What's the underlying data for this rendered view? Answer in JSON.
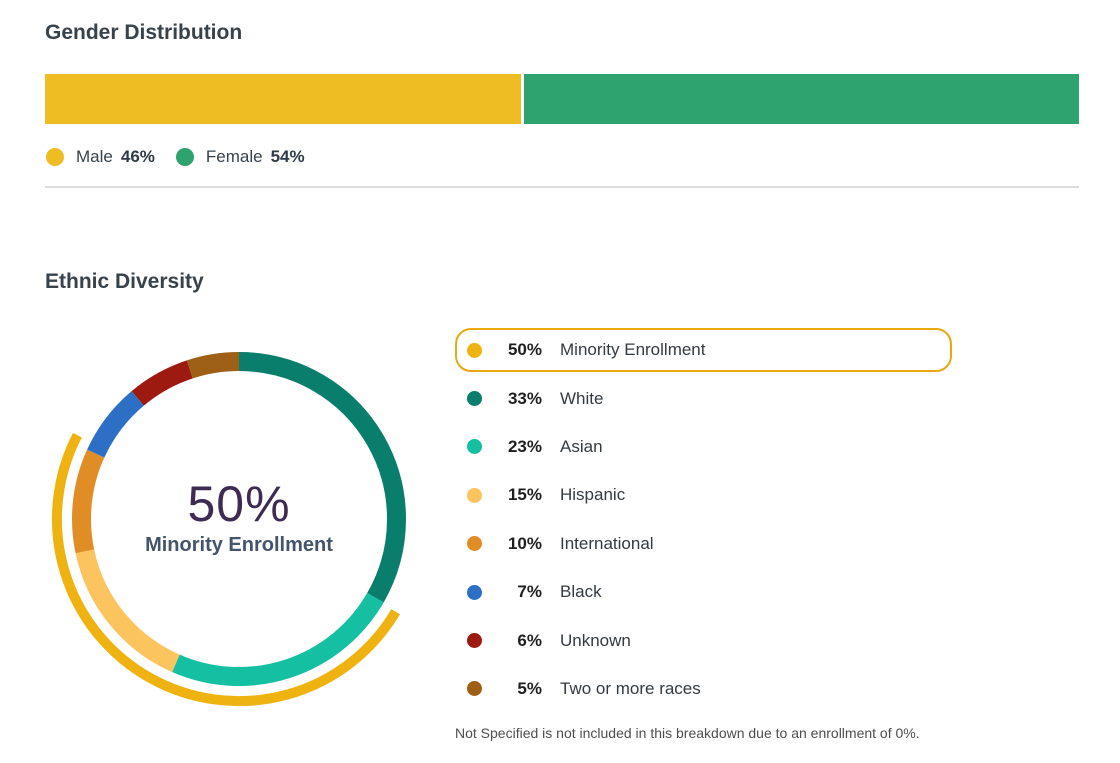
{
  "page": {
    "background": "#ffffff"
  },
  "gender_section": {
    "title": "Gender Distribution",
    "legend": [
      {
        "label": "Male",
        "pct_text": "46%",
        "color": "#eebd23"
      },
      {
        "label": "Female",
        "pct_text": "54%",
        "color": "#2ea26f"
      }
    ]
  },
  "ethnic_section": {
    "title": "Ethnic Diversity",
    "center_value": "50%",
    "center_label": "Minority Enrollment",
    "highlight_border_color": "#e7a90e",
    "legend": [
      {
        "pct_text": "50%",
        "label": "Minority Enrollment",
        "color": "#efb311",
        "highlighted": true
      },
      {
        "pct_text": "33%",
        "label": "White",
        "color": "#0a7e6d",
        "highlighted": false
      },
      {
        "pct_text": "23%",
        "label": "Asian",
        "color": "#14bfa2",
        "highlighted": false
      },
      {
        "pct_text": "15%",
        "label": "Hispanic",
        "color": "#fbc45e",
        "highlighted": false
      },
      {
        "pct_text": "10%",
        "label": "International",
        "color": "#e08d26",
        "highlighted": false
      },
      {
        "pct_text": "7%",
        "label": "Black",
        "color": "#2d6fc4",
        "highlighted": false
      },
      {
        "pct_text": "6%",
        "label": "Unknown",
        "color": "#9c1a10",
        "highlighted": false
      },
      {
        "pct_text": "5%",
        "label": "Two or more races",
        "color": "#9d6016",
        "highlighted": false
      }
    ],
    "footnote": "Not Specified is not included in this breakdown due to an enrollment of 0%."
  },
  "chart_data": [
    {
      "type": "bar",
      "variant": "stacked-horizontal",
      "title": "Gender Distribution",
      "unit": "%",
      "series": [
        {
          "name": "Male",
          "value": 46,
          "color": "#eebd23"
        },
        {
          "name": "Female",
          "value": 54,
          "color": "#2ea26f"
        }
      ]
    },
    {
      "type": "pie",
      "variant": "donut",
      "title": "Ethnic Diversity",
      "unit": "%",
      "center_value": "50%",
      "center_label": "Minority Enrollment",
      "segments": [
        {
          "label": "White",
          "value": 33,
          "color": "#0a7e6d"
        },
        {
          "label": "Asian",
          "value": 23,
          "color": "#14bfa2"
        },
        {
          "label": "Hispanic",
          "value": 15,
          "color": "#fbc45e"
        },
        {
          "label": "International",
          "value": 10,
          "color": "#e08d26"
        },
        {
          "label": "Black",
          "value": 7,
          "color": "#2d6fc4"
        },
        {
          "label": "Unknown",
          "value": 6,
          "color": "#9c1a10"
        },
        {
          "label": "Two or more races",
          "value": 5,
          "color": "#9d6016"
        }
      ],
      "outer_arc": {
        "label": "Minority Enrollment",
        "value": 50,
        "color": "#efb311",
        "start_deg": 120.6,
        "end_deg": 297.4
      },
      "legend_position": "right",
      "note": "Not Specified is not included in this breakdown due to an enrollment of 0%."
    }
  ]
}
